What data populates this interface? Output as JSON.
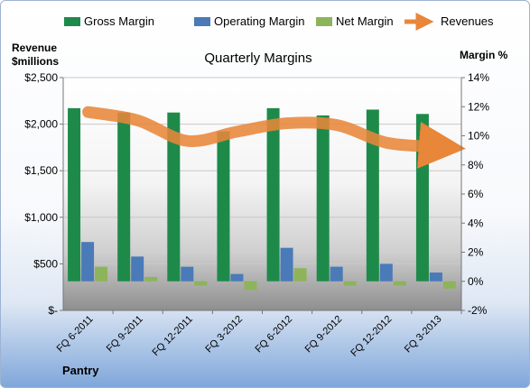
{
  "chart_data": {
    "type": "bar",
    "title": "Quarterly Margins",
    "corner_label": "Pantry",
    "categories": [
      "FQ 6-2011",
      "FQ 9-2011",
      "FQ 12-2011",
      "FQ 3-2012",
      "FQ 6-2012",
      "FQ 9-2012",
      "FQ 12-2012",
      "FQ 3-2013"
    ],
    "y_left": {
      "label_line1": "Revenue",
      "label_line2": "$millions",
      "ylim": [
        0,
        2500
      ],
      "ticks": [
        0,
        500,
        1000,
        1500,
        2000,
        2500
      ],
      "tick_labels": [
        "$-",
        "$500",
        "$1,000",
        "$1,500",
        "$2,000",
        "$2,500"
      ]
    },
    "y_right": {
      "label": "Margin %",
      "ylim": [
        -2,
        14
      ],
      "ticks": [
        -2,
        0,
        2,
        4,
        6,
        8,
        10,
        12,
        14
      ],
      "tick_labels": [
        "-2%",
        "0%",
        "2%",
        "4%",
        "6%",
        "8%",
        "10%",
        "12%",
        "14%"
      ]
    },
    "series": [
      {
        "name": "Gross Margin",
        "axis": "right",
        "type": "bar",
        "color": "#1e8a4a",
        "values": [
          11.9,
          11.6,
          11.6,
          10.3,
          11.9,
          11.4,
          11.8,
          11.5
        ]
      },
      {
        "name": "Operating Margin",
        "axis": "right",
        "type": "bar",
        "color": "#4a7ab8",
        "values": [
          2.7,
          1.7,
          1.0,
          0.5,
          2.3,
          1.0,
          1.2,
          0.6
        ]
      },
      {
        "name": "Net Margin",
        "axis": "right",
        "type": "bar",
        "color": "#8db45a",
        "values": [
          1.0,
          0.3,
          -0.3,
          -0.6,
          0.9,
          -0.3,
          -0.3,
          -0.5
        ]
      },
      {
        "name": "Revenues",
        "axis": "left",
        "type": "line",
        "color": "#e8863a",
        "values": [
          2130,
          2040,
          1820,
          1920,
          2010,
          1990,
          1800,
          1760
        ]
      }
    ],
    "grid": true,
    "legend": "top"
  }
}
